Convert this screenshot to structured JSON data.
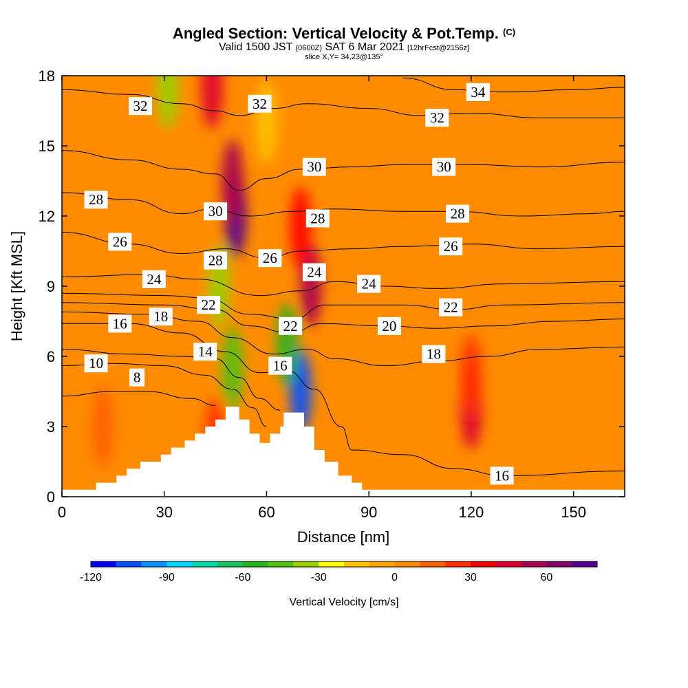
{
  "header": {
    "title": "Angled Section: Vertical Velocity & Pot.Temp.",
    "title_mark": "(C)",
    "valid_prefix": "Valid 1500 JST",
    "valid_utc": "(0600Z)",
    "valid_date": "SAT 6 Mar 2021",
    "forecast_tag": "[12hrFcst@2156z]",
    "slice": "slice X,Y= 34,23@135°"
  },
  "chart_data": {
    "type": "heatmap",
    "xlabel": "Distance [nm]",
    "ylabel": "Height [Kft MSL]",
    "xlim": [
      0,
      165
    ],
    "ylim": [
      0,
      18
    ],
    "xticks": [
      0,
      30,
      60,
      90,
      120,
      150
    ],
    "yticks": [
      0,
      3,
      6,
      9,
      12,
      15,
      18
    ],
    "colorbar": {
      "label": "Vertical Velocity [cm/s]",
      "ticks": [
        -120,
        -90,
        -60,
        -30,
        0,
        30,
        60
      ],
      "min": -120,
      "max": 80,
      "step": 10,
      "colors": [
        "#0000ff",
        "#0050ff",
        "#0095ff",
        "#00d5ff",
        "#00d8a8",
        "#18c060",
        "#28b420",
        "#52c010",
        "#98d000",
        "#ffff00",
        "#ffc400",
        "#ffa800",
        "#ff8c00",
        "#ff6000",
        "#ff3000",
        "#ff0000",
        "#dd0030",
        "#aa0050",
        "#800068",
        "#55008c"
      ]
    },
    "terrain_profile": [
      [
        0,
        0.3
      ],
      [
        10,
        0.3
      ],
      [
        10,
        0.6
      ],
      [
        16,
        0.6
      ],
      [
        16,
        0.9
      ],
      [
        19,
        0.9
      ],
      [
        19,
        1.2
      ],
      [
        23,
        1.2
      ],
      [
        23,
        1.5
      ],
      [
        29,
        1.5
      ],
      [
        29,
        1.8
      ],
      [
        32,
        1.8
      ],
      [
        32,
        2.1
      ],
      [
        36,
        2.1
      ],
      [
        36,
        2.4
      ],
      [
        39,
        2.4
      ],
      [
        39,
        2.7
      ],
      [
        42,
        2.7
      ],
      [
        42,
        3.0
      ],
      [
        45,
        3.0
      ],
      [
        45,
        3.3
      ],
      [
        48,
        3.3
      ],
      [
        48,
        3.85
      ],
      [
        52,
        3.85
      ],
      [
        52,
        3.3
      ],
      [
        55,
        3.3
      ],
      [
        55,
        2.7
      ],
      [
        58,
        2.7
      ],
      [
        58,
        2.3
      ],
      [
        61,
        2.3
      ],
      [
        61,
        2.7
      ],
      [
        64,
        2.7
      ],
      [
        64,
        3.0
      ],
      [
        65,
        3.0
      ],
      [
        65,
        3.6
      ],
      [
        71,
        3.6
      ],
      [
        71,
        3.0
      ],
      [
        74,
        3.0
      ],
      [
        74,
        2.0
      ],
      [
        77,
        2.0
      ],
      [
        77,
        1.5
      ],
      [
        81,
        1.5
      ],
      [
        81,
        0.9
      ],
      [
        85,
        0.9
      ],
      [
        85,
        0.6
      ],
      [
        88,
        0.6
      ],
      [
        88,
        0.3
      ],
      [
        165,
        0.3
      ]
    ],
    "vertical_velocity_cells": [
      {
        "x": 51,
        "y": 12.0,
        "value": 75
      },
      {
        "x": 50,
        "y": 13.5,
        "value": 50
      },
      {
        "x": 44,
        "y": 17.5,
        "value": 40
      },
      {
        "x": 73,
        "y": 9.0,
        "value": 55
      },
      {
        "x": 70,
        "y": 11.5,
        "value": 35
      },
      {
        "x": 120,
        "y": 3.8,
        "value": 40
      },
      {
        "x": 120,
        "y": 5.2,
        "value": 20
      },
      {
        "x": 46,
        "y": 9.0,
        "value": -40
      },
      {
        "x": 50,
        "y": 5.5,
        "value": -50
      },
      {
        "x": 70,
        "y": 4.5,
        "value": -110
      },
      {
        "x": 66,
        "y": 6.5,
        "value": -60
      },
      {
        "x": 31,
        "y": 17.5,
        "value": -40
      },
      {
        "x": 60,
        "y": 16.0,
        "value": -20
      },
      {
        "x": 45,
        "y": 2.5,
        "value": 25
      },
      {
        "x": 12,
        "y": 3.0,
        "value": 15
      }
    ],
    "isentropes": [
      {
        "theta": 8,
        "points": [
          [
            0,
            4.3
          ],
          [
            15,
            4.5
          ],
          [
            25,
            4.5
          ],
          [
            38,
            4.2
          ],
          [
            45,
            3.9
          ]
        ]
      },
      {
        "theta": 10,
        "points": [
          [
            0,
            5.6
          ],
          [
            15,
            5.7
          ],
          [
            30,
            5.6
          ],
          [
            42,
            5.2
          ],
          [
            50,
            4.6
          ],
          [
            56,
            3.8
          ],
          [
            60,
            3.0
          ]
        ]
      },
      {
        "theta": 14,
        "points": [
          [
            0,
            6.3
          ],
          [
            20,
            6.1
          ],
          [
            35,
            6.0
          ],
          [
            45,
            5.9
          ],
          [
            52,
            5.1
          ],
          [
            58,
            4.2
          ],
          [
            64,
            3.7
          ]
        ]
      },
      {
        "theta": 16,
        "points": [
          [
            0,
            7.4
          ],
          [
            20,
            7.4
          ],
          [
            35,
            7.0
          ],
          [
            48,
            6.2
          ],
          [
            58,
            5.3
          ],
          [
            66,
            5.4
          ],
          [
            74,
            4.6
          ],
          [
            82,
            3.0
          ],
          [
            85,
            2.0
          ],
          [
            100,
            1.8
          ],
          [
            115,
            1.2
          ],
          [
            130,
            0.9
          ],
          [
            165,
            1.1
          ]
        ]
      },
      {
        "theta": 18,
        "points": [
          [
            0,
            7.9
          ],
          [
            25,
            7.8
          ],
          [
            40,
            7.5
          ],
          [
            50,
            6.8
          ],
          [
            62,
            6.1
          ],
          [
            72,
            6.3
          ],
          [
            80,
            5.9
          ],
          [
            95,
            5.6
          ],
          [
            110,
            5.8
          ],
          [
            125,
            6.0
          ],
          [
            140,
            6.3
          ],
          [
            165,
            6.4
          ]
        ]
      },
      {
        "theta": 20,
        "points": [
          [
            0,
            8.3
          ],
          [
            30,
            8.2
          ],
          [
            45,
            8.0
          ],
          [
            55,
            7.3
          ],
          [
            67,
            7.0
          ],
          [
            76,
            7.4
          ],
          [
            95,
            7.3
          ],
          [
            110,
            7.2
          ],
          [
            125,
            7.3
          ],
          [
            145,
            7.5
          ],
          [
            165,
            7.6
          ]
        ]
      },
      {
        "theta": 22,
        "points": [
          [
            0,
            8.7
          ],
          [
            30,
            8.6
          ],
          [
            42,
            8.5
          ],
          [
            55,
            7.8
          ],
          [
            68,
            7.6
          ],
          [
            77,
            8.2
          ],
          [
            100,
            8.2
          ],
          [
            115,
            8.0
          ],
          [
            130,
            8.2
          ],
          [
            165,
            8.3
          ]
        ]
      },
      {
        "theta": 24,
        "points": [
          [
            0,
            9.4
          ],
          [
            25,
            9.5
          ],
          [
            40,
            9.3
          ],
          [
            58,
            8.6
          ],
          [
            70,
            8.8
          ],
          [
            80,
            9.2
          ],
          [
            95,
            9.0
          ],
          [
            110,
            8.9
          ],
          [
            130,
            9.1
          ],
          [
            165,
            9.2
          ]
        ]
      },
      {
        "theta": 26,
        "points": [
          [
            0,
            11.3
          ],
          [
            20,
            10.8
          ],
          [
            35,
            10.4
          ],
          [
            48,
            10.6
          ],
          [
            60,
            10.2
          ],
          [
            70,
            10.5
          ],
          [
            85,
            10.6
          ],
          [
            100,
            10.7
          ],
          [
            120,
            10.8
          ],
          [
            140,
            10.6
          ],
          [
            165,
            10.7
          ]
        ]
      },
      {
        "theta": 28,
        "points": [
          [
            0,
            13.0
          ],
          [
            20,
            12.7
          ],
          [
            35,
            12.1
          ],
          [
            44,
            12.3
          ],
          [
            55,
            12.0
          ],
          [
            68,
            12.2
          ],
          [
            80,
            12.3
          ],
          [
            100,
            12.2
          ],
          [
            115,
            12.2
          ],
          [
            135,
            12.0
          ],
          [
            155,
            12.1
          ],
          [
            165,
            12.2
          ]
        ]
      },
      {
        "theta": 30,
        "points": [
          [
            0,
            14.8
          ],
          [
            20,
            14.4
          ],
          [
            35,
            14.0
          ],
          [
            45,
            13.8
          ],
          [
            52,
            13.1
          ],
          [
            60,
            13.6
          ],
          [
            70,
            14.0
          ],
          [
            85,
            14.1
          ],
          [
            100,
            14.2
          ],
          [
            120,
            14.2
          ],
          [
            140,
            14.1
          ],
          [
            165,
            14.3
          ]
        ]
      },
      {
        "theta": 32,
        "points": [
          [
            0,
            17.4
          ],
          [
            20,
            17.2
          ],
          [
            35,
            16.8
          ],
          [
            45,
            16.5
          ],
          [
            52,
            16.3
          ],
          [
            62,
            16.6
          ],
          [
            72,
            16.8
          ],
          [
            90,
            16.6
          ],
          [
            105,
            16.3
          ],
          [
            120,
            16.4
          ],
          [
            140,
            16.2
          ],
          [
            165,
            16.2
          ]
        ]
      },
      {
        "theta": 34,
        "points": [
          [
            100,
            17.9
          ],
          [
            115,
            17.4
          ],
          [
            130,
            17.3
          ],
          [
            150,
            17.4
          ],
          [
            165,
            17.5
          ]
        ]
      }
    ],
    "contour_labels": [
      {
        "text": "32",
        "x": 23,
        "y": 16.7
      },
      {
        "text": "32",
        "x": 58,
        "y": 16.8
      },
      {
        "text": "34",
        "x": 122,
        "y": 17.3
      },
      {
        "text": "32",
        "x": 110,
        "y": 16.2
      },
      {
        "text": "30",
        "x": 74,
        "y": 14.1
      },
      {
        "text": "30",
        "x": 112,
        "y": 14.1
      },
      {
        "text": "28",
        "x": 10,
        "y": 12.7
      },
      {
        "text": "30",
        "x": 45,
        "y": 12.2
      },
      {
        "text": "28",
        "x": 75,
        "y": 11.9
      },
      {
        "text": "28",
        "x": 116,
        "y": 12.1
      },
      {
        "text": "26",
        "x": 17,
        "y": 10.9
      },
      {
        "text": "26",
        "x": 61,
        "y": 10.2
      },
      {
        "text": "26",
        "x": 114,
        "y": 10.7
      },
      {
        "text": "28",
        "x": 45,
        "y": 10.1
      },
      {
        "text": "24",
        "x": 74,
        "y": 9.6
      },
      {
        "text": "24",
        "x": 27,
        "y": 9.3
      },
      {
        "text": "24",
        "x": 90,
        "y": 9.1
      },
      {
        "text": "22",
        "x": 43,
        "y": 8.2
      },
      {
        "text": "22",
        "x": 114,
        "y": 8.1
      },
      {
        "text": "18",
        "x": 29,
        "y": 7.7
      },
      {
        "text": "16",
        "x": 17,
        "y": 7.4
      },
      {
        "text": "22",
        "x": 67,
        "y": 7.3
      },
      {
        "text": "20",
        "x": 96,
        "y": 7.3
      },
      {
        "text": "14",
        "x": 42,
        "y": 6.2
      },
      {
        "text": "18",
        "x": 109,
        "y": 6.1
      },
      {
        "text": "10",
        "x": 10,
        "y": 5.7
      },
      {
        "text": "16",
        "x": 64,
        "y": 5.6
      },
      {
        "text": "8",
        "x": 22,
        "y": 5.1
      },
      {
        "text": "16",
        "x": 129,
        "y": 0.9
      }
    ]
  }
}
